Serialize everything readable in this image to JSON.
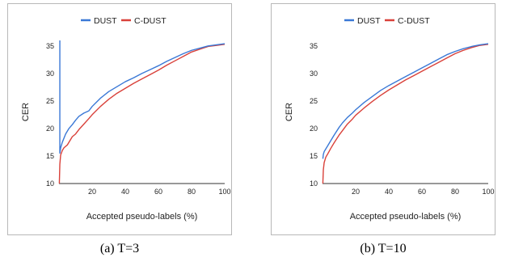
{
  "chart_data": [
    {
      "type": "line",
      "xlabel": "Accepted pseudo-labels (%)",
      "ylabel": "CER",
      "xlim": [
        0,
        100
      ],
      "ylim": [
        10,
        36
      ],
      "xticks": [
        20,
        40,
        60,
        80,
        100
      ],
      "yticks": [
        10,
        15,
        20,
        25,
        30,
        35
      ],
      "grid": false,
      "legend": "top",
      "series": [
        {
          "name": "DUST",
          "color": "#3a78d6",
          "x": [
            0.5,
            0.5,
            1,
            2,
            4,
            6,
            8,
            10,
            12,
            15,
            18,
            20,
            25,
            30,
            35,
            40,
            45,
            50,
            55,
            60,
            65,
            70,
            75,
            80,
            85,
            90,
            95,
            100
          ],
          "y": [
            36,
            15.5,
            16.5,
            17.5,
            19,
            20,
            20.7,
            21.5,
            22.2,
            22.8,
            23.2,
            24,
            25.5,
            26.7,
            27.6,
            28.5,
            29.2,
            30,
            30.7,
            31.4,
            32.2,
            32.9,
            33.6,
            34.2,
            34.6,
            35,
            35.2,
            35.4
          ]
        },
        {
          "name": "C-DUST",
          "color": "#d9413a",
          "x": [
            0.2,
            0.5,
            1,
            2,
            3,
            5,
            8,
            10,
            12,
            15,
            18,
            20,
            25,
            30,
            35,
            40,
            45,
            50,
            55,
            60,
            65,
            70,
            75,
            80,
            85,
            90,
            95,
            100
          ],
          "y": [
            10,
            13.5,
            15.2,
            16,
            16.5,
            17,
            18.5,
            19,
            19.8,
            20.8,
            21.8,
            22.5,
            24,
            25.3,
            26.4,
            27.3,
            28.2,
            29,
            29.8,
            30.6,
            31.5,
            32.3,
            33.1,
            33.9,
            34.4,
            34.9,
            35.1,
            35.3
          ]
        }
      ]
    },
    {
      "type": "line",
      "xlabel": "Accepted pseudo-labels (%)",
      "ylabel": "CER",
      "xlim": [
        0,
        100
      ],
      "ylim": [
        10,
        36
      ],
      "xticks": [
        20,
        40,
        60,
        80,
        100
      ],
      "yticks": [
        10,
        15,
        20,
        25,
        30,
        35
      ],
      "grid": false,
      "legend": "top",
      "series": [
        {
          "name": "DUST",
          "color": "#3a78d6",
          "x": [
            0.2,
            0.5,
            1,
            2,
            3,
            5,
            7,
            10,
            12,
            15,
            18,
            20,
            25,
            30,
            35,
            40,
            45,
            50,
            55,
            60,
            65,
            70,
            75,
            80,
            85,
            90,
            95,
            100
          ],
          "y": [
            14.5,
            15.3,
            15.8,
            16.3,
            16.8,
            17.8,
            18.8,
            20.2,
            21,
            22,
            22.8,
            23.4,
            24.7,
            25.8,
            26.9,
            27.8,
            28.6,
            29.4,
            30.2,
            31,
            31.8,
            32.6,
            33.4,
            34,
            34.5,
            34.9,
            35.2,
            35.4
          ]
        },
        {
          "name": "C-DUST",
          "color": "#d9413a",
          "x": [
            0.2,
            0.5,
            1,
            2,
            3,
            5,
            7,
            10,
            12,
            15,
            18,
            20,
            25,
            30,
            35,
            40,
            45,
            50,
            55,
            60,
            65,
            70,
            75,
            80,
            85,
            90,
            95,
            100
          ],
          "y": [
            10,
            12.5,
            13.8,
            14.8,
            15.3,
            16.4,
            17.4,
            18.8,
            19.6,
            20.8,
            21.7,
            22.4,
            23.7,
            24.9,
            26,
            27,
            27.9,
            28.8,
            29.6,
            30.4,
            31.2,
            32,
            32.8,
            33.6,
            34.2,
            34.7,
            35.1,
            35.3
          ]
        }
      ]
    }
  ],
  "captions": [
    "(a) T=3",
    "(b) T=10"
  ]
}
